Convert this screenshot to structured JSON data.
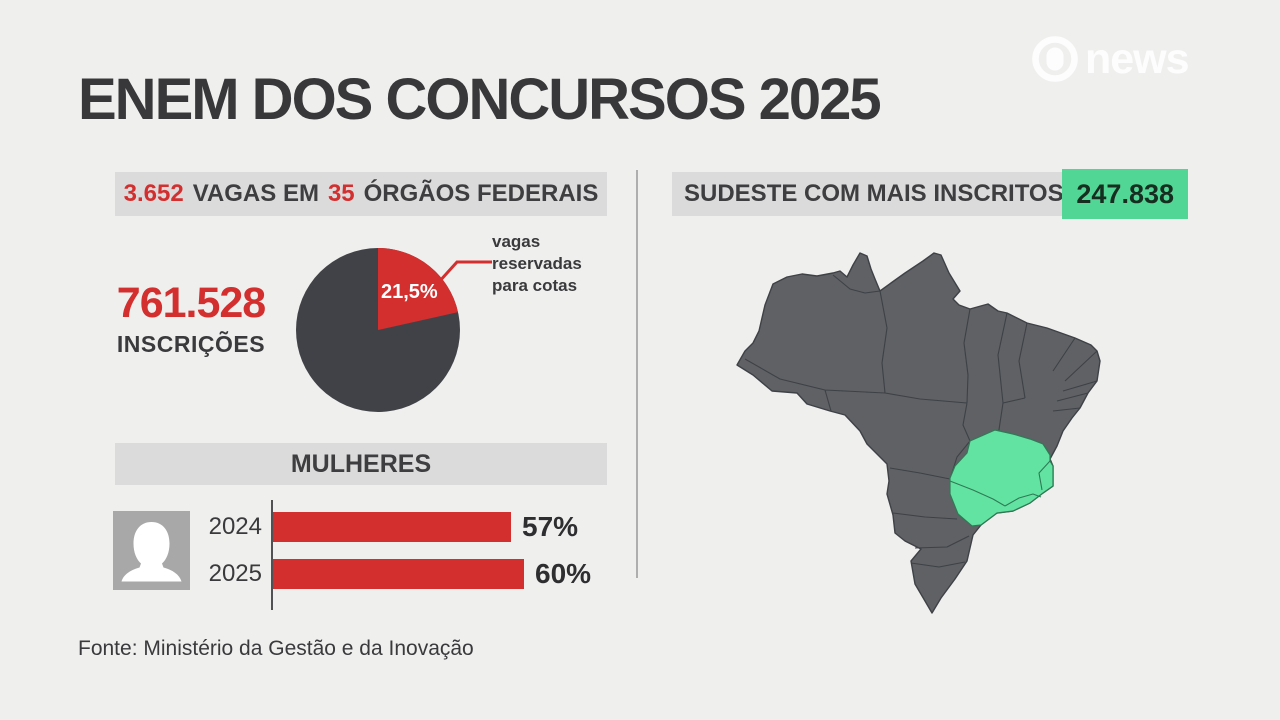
{
  "colors": {
    "page_bg": "#efefee",
    "accent_red": "#d32f2f",
    "dark_text": "#3a3a3c",
    "banner_bg": "#dbdbdc",
    "pie_dark": "#414247",
    "map_gray": "#5f6165",
    "map_border": "#3e4146",
    "map_green": "#63e3a2",
    "map_green_border": "#2f7a55",
    "green_box": "#52d695"
  },
  "logo": {
    "brand": "news"
  },
  "title": "ENEM DOS CONCURSOS 2025",
  "left": {
    "vagas_banner": {
      "num_vagas": "3.652",
      "mid": "VAGAS EM",
      "num_orgaos": "35",
      "end": "ÓRGÃOS FEDERAIS"
    },
    "inscricoes": {
      "value": "761.528",
      "label": "INSCRIÇÕES"
    },
    "pie_label": "21,5%",
    "callout": [
      "vagas",
      "reservadas",
      "para cotas"
    ],
    "mulheres": {
      "title": "MULHERES",
      "rows": [
        {
          "year": "2024",
          "pct": 57,
          "label": "57%"
        },
        {
          "year": "2025",
          "pct": 60,
          "label": "60%"
        }
      ]
    },
    "fonte": "Fonte: Ministério da Gestão e da Inovação"
  },
  "right": {
    "banner_text": "SUDESTE COM MAIS INSCRITOS:",
    "value": "247.838",
    "region": "Sudeste"
  },
  "chart_data": [
    {
      "type": "pie",
      "title": "3.652 vagas em 35 órgãos federais",
      "labels": [
        "vagas reservadas para cotas",
        "demais vagas"
      ],
      "values": [
        21.5,
        78.5
      ],
      "unit": "%",
      "colors": [
        "#d32f2f",
        "#414247"
      ],
      "annotation": "761.528 inscrições"
    },
    {
      "type": "bar",
      "title": "MULHERES",
      "orientation": "horizontal",
      "categories": [
        "2024",
        "2025"
      ],
      "values": [
        57,
        60
      ],
      "unit": "%",
      "xlim": [
        0,
        100
      ],
      "bar_color": "#d32f2f"
    },
    {
      "type": "heatmap",
      "title": "SUDESTE COM MAIS INSCRITOS",
      "categories": [
        "Sudeste"
      ],
      "values": [
        247838
      ],
      "note": "mapa do Brasil com a região Sudeste destacada em verde"
    }
  ]
}
